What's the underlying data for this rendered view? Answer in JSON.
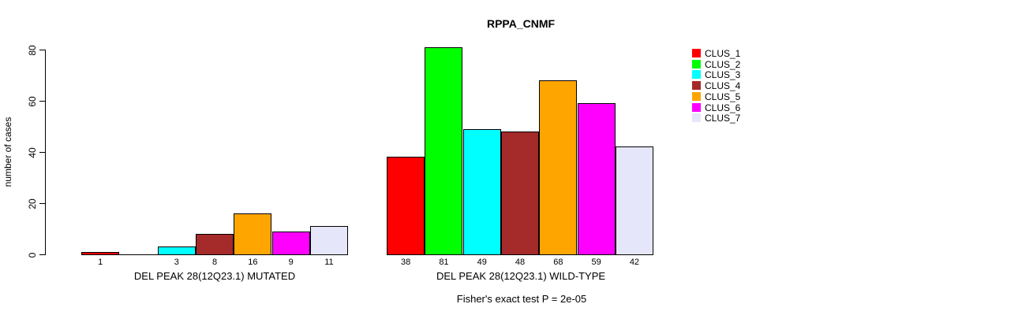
{
  "chart_data": {
    "type": "bar",
    "title": "RPPA_CNMF",
    "ylabel": "number of cases",
    "ylim": [
      0,
      80
    ],
    "yticks": [
      0,
      20,
      40,
      60,
      80
    ],
    "grid": false,
    "legend_position": "right",
    "clusters": [
      "CLUS_1",
      "CLUS_2",
      "CLUS_3",
      "CLUS_4",
      "CLUS_5",
      "CLUS_6",
      "CLUS_7"
    ],
    "colors": [
      "#FF0000",
      "#00FF00",
      "#00FFFF",
      "#A52A2A",
      "#FFA500",
      "#FF00FF",
      "#E6E6FA"
    ],
    "groups": [
      {
        "label": "DEL PEAK 28(12Q23.1) MUTATED",
        "values": [
          1,
          0,
          3,
          8,
          16,
          9,
          11
        ],
        "value_labels": [
          "1",
          "",
          "3",
          "8",
          "16",
          "9",
          "11"
        ]
      },
      {
        "label": "DEL PEAK 28(12Q23.1) WILD-TYPE",
        "values": [
          38,
          81,
          49,
          48,
          68,
          59,
          42
        ],
        "value_labels": [
          "38",
          "81",
          "49",
          "48",
          "68",
          "59",
          "42"
        ]
      }
    ],
    "annotation": "Fisher's exact test P = 2e-05"
  },
  "legend": {
    "items": [
      {
        "label": "CLUS_1",
        "color": "#FF0000"
      },
      {
        "label": "CLUS_2",
        "color": "#00FF00"
      },
      {
        "label": "CLUS_3",
        "color": "#00FFFF"
      },
      {
        "label": "CLUS_4",
        "color": "#A52A2A"
      },
      {
        "label": "CLUS_5",
        "color": "#FFA500"
      },
      {
        "label": "CLUS_6",
        "color": "#FF00FF"
      },
      {
        "label": "CLUS_7",
        "color": "#E6E6FA"
      }
    ]
  }
}
